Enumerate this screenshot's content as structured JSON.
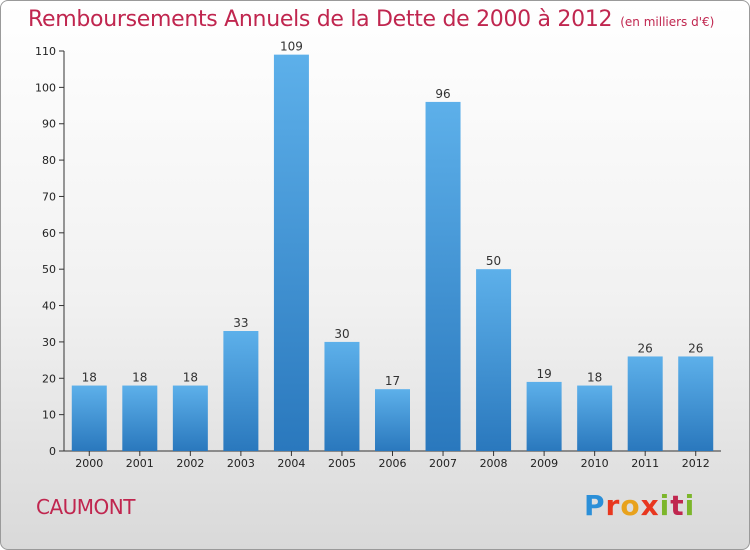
{
  "header": {
    "title": "Remboursements Annuels de la Dette de 2000 à 2012",
    "subtitle": "(en milliers d'€)"
  },
  "footer": {
    "commune": "CAUMONT",
    "logo": "Proxiti"
  },
  "colors": {
    "title": "#c0264f",
    "bar_top": "#5db0ea",
    "bar_bottom": "#2a78bd"
  },
  "chart_data": {
    "type": "bar",
    "categories": [
      "2000",
      "2001",
      "2002",
      "2003",
      "2004",
      "2005",
      "2006",
      "2007",
      "2008",
      "2009",
      "2010",
      "2011",
      "2012"
    ],
    "values": [
      18,
      18,
      18,
      33,
      109,
      30,
      17,
      96,
      50,
      19,
      18,
      26,
      26
    ],
    "ylim": [
      0,
      110
    ],
    "yticks": [
      0,
      10,
      20,
      30,
      40,
      50,
      60,
      70,
      80,
      90,
      100,
      110
    ],
    "grid": false,
    "data_labels": true
  }
}
